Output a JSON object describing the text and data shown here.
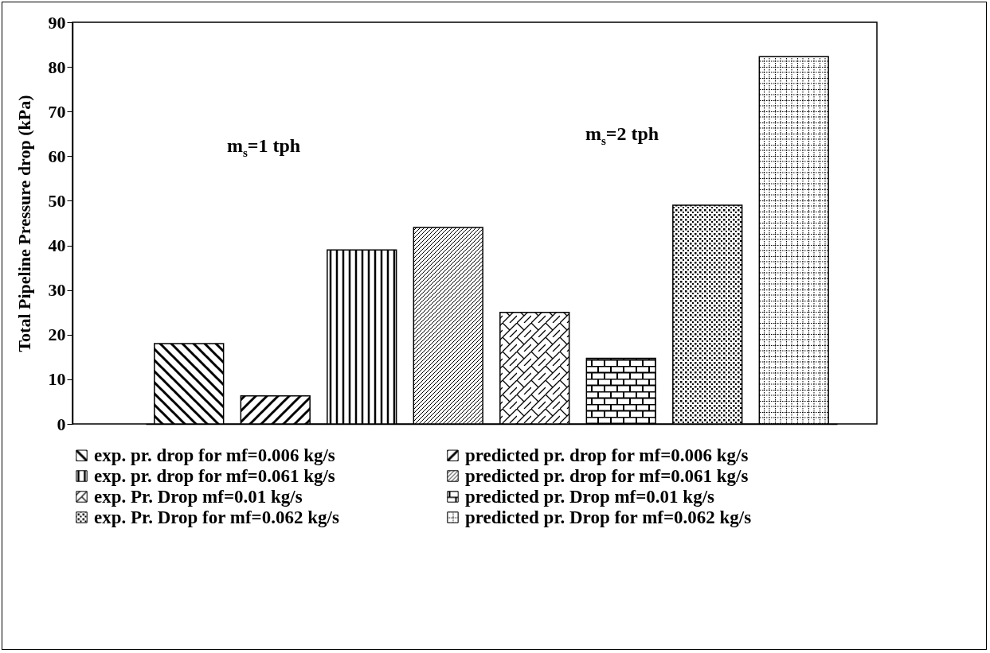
{
  "chart_data": {
    "type": "bar",
    "ylabel": "Total Pipeline Pressure drop (kPa)",
    "categories": [
      null
    ],
    "series": [
      {
        "name": "exp. pr. drop for mf=0.006 kg/s",
        "color": "#000000",
        "values": [
          18
        ]
      },
      {
        "name": "predicted pr. drop for mf=0.006 kg/s",
        "color": "#000000",
        "values": [
          6.3
        ]
      },
      {
        "name": "exp. pr. drop for mf=0.061 kg/s",
        "color": "#000000",
        "values": [
          39
        ]
      },
      {
        "name": "predicted pr. drop for mf=0.061 kg/s",
        "color": "#000000",
        "values": [
          44
        ]
      },
      {
        "name": "exp. Pr. Drop mf=0.01 kg/s",
        "color": "#000000",
        "values": [
          25
        ]
      },
      {
        "name": "predicted pr. Drop mf=0.01 kg/s",
        "color": "#000000",
        "values": [
          14.7
        ]
      },
      {
        "name": "exp. Pr. Drop for mf=0.062 kg/s",
        "color": "#000000",
        "values": [
          49
        ]
      },
      {
        "name": "predicted pr. Drop for mf=0.062 kg/s",
        "color": "#000000",
        "values": [
          82.3
        ]
      }
    ],
    "ylim": [
      0,
      90
    ],
    "yticks": [
      0,
      10,
      20,
      30,
      40,
      50,
      60,
      70,
      80,
      90
    ],
    "annotations": [
      "m$_{s}$=1 tph",
      "m$_{s}$=2 tph"
    ],
    "legend": "bottom",
    "tick_labels": "y",
    "grid": false
  }
}
